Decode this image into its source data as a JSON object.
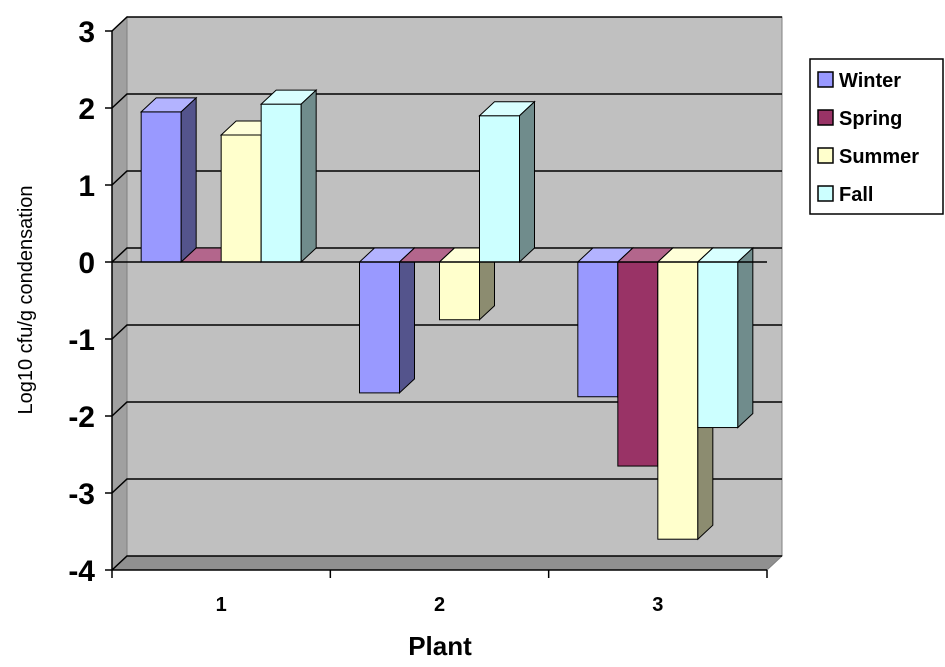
{
  "chart_data": {
    "type": "bar",
    "categories": [
      "1",
      "2",
      "3"
    ],
    "series": [
      {
        "name": "Winter",
        "values": [
          1.95,
          -1.7,
          -1.75
        ],
        "color": "#9999ff"
      },
      {
        "name": "Spring",
        "values": [
          0,
          0,
          -2.65
        ],
        "color": "#993366"
      },
      {
        "name": "Summer",
        "values": [
          1.65,
          -0.75,
          -3.6
        ],
        "color": "#ffffcc"
      },
      {
        "name": "Fall",
        "values": [
          2.05,
          1.9,
          -2.15
        ],
        "color": "#ccffff"
      }
    ],
    "title": "",
    "xlabel": "Plant",
    "ylabel": "Log10 cfu/g condensation",
    "ylim": [
      -4,
      3
    ],
    "yticks": [
      "3",
      "2",
      "1",
      "0",
      "-1",
      "-2",
      "-3",
      "-4"
    ],
    "grid": true,
    "legend_position": "top-right",
    "plot_background": "#c0c0c0",
    "three_d": true
  }
}
